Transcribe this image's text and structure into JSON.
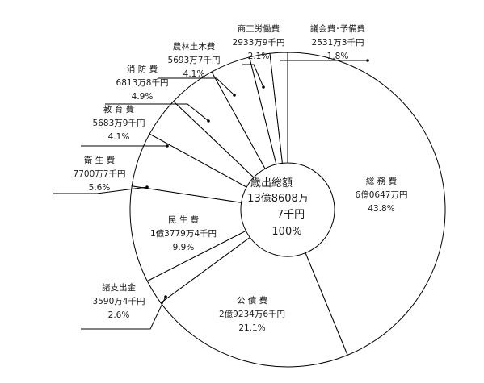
{
  "chart_data": {
    "type": "pie",
    "center_label": {
      "title": "歳出総額",
      "amount_line1": "13億8608万",
      "amount_line2": "7千円",
      "percent": "100%"
    },
    "slices": [
      {
        "name": "総 務 費",
        "amount": "6億0647万円",
        "percent_label": "43.8%",
        "value": 43.8
      },
      {
        "name": "公 債 費",
        "amount": "2億9234万6千円",
        "percent_label": "21.1%",
        "value": 21.1
      },
      {
        "name": "諸支出金",
        "amount": "3590万4千円",
        "percent_label": "2.6%",
        "value": 2.6
      },
      {
        "name": "民 生 費",
        "amount": "1億3779万4千円",
        "percent_label": "9.9%",
        "value": 9.9
      },
      {
        "name": "衛 生 費",
        "amount": "7700万7千円",
        "percent_label": "5.6%",
        "value": 5.6
      },
      {
        "name": "教 育 費",
        "amount": "5683万9千円",
        "percent_label": "4.1%",
        "value": 4.1
      },
      {
        "name": "消 防 費",
        "amount": "6813万8千円",
        "percent_label": "4.9%",
        "value": 4.9
      },
      {
        "name": "農林土木費",
        "amount": "5693万7千円",
        "percent_label": "4.1%",
        "value": 4.1
      },
      {
        "name": "商工労働費",
        "amount": "2933万9千円",
        "percent_label": "2.1%",
        "value": 2.1
      },
      {
        "name": "議会費･予備費",
        "amount": "2531万3千円",
        "percent_label": "1.8%",
        "value": 1.8
      }
    ]
  }
}
